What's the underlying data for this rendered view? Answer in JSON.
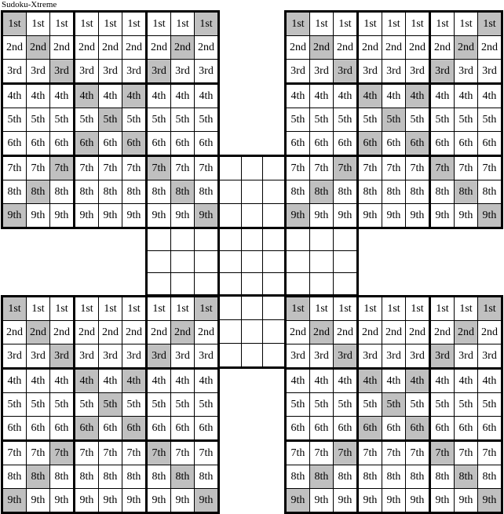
{
  "title": "Sudoku-Xtreme",
  "colors": {
    "background": "#ffffff",
    "grid_line": "#000000",
    "shaded_cell": "#c0c0c0",
    "text": "#000000"
  },
  "puzzle": {
    "row_labels": [
      "1st",
      "2nd",
      "3rd",
      "4th",
      "5th",
      "6th",
      "7th",
      "8th",
      "9th"
    ],
    "shaded_columns_by_row": [
      [
        1,
        9
      ],
      [
        2,
        8
      ],
      [
        3,
        7
      ],
      [
        4,
        6
      ],
      [
        5
      ],
      [
        4,
        6
      ],
      [
        3,
        7
      ],
      [
        2,
        8
      ],
      [
        1,
        9
      ]
    ],
    "shading_meaning": "both main diagonals of each 9x9 grid are shaded",
    "grids": [
      {
        "id": "top-left"
      },
      {
        "id": "top-right"
      },
      {
        "id": "bottom-left"
      },
      {
        "id": "bottom-right"
      }
    ],
    "center_grid": {
      "id": "center",
      "cells_empty": true
    }
  }
}
